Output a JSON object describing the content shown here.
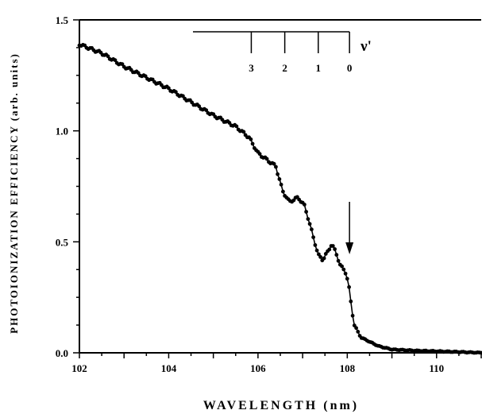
{
  "chart_data": {
    "type": "scatter",
    "title": "",
    "xlabel": "WAVELENGTH (nm)",
    "ylabel": "PHOTOIONIZATION EFFICIENCY (arb. units)",
    "xlim": [
      102,
      111
    ],
    "ylim": [
      0,
      1.5
    ],
    "x_ticks": [
      102,
      104,
      106,
      108,
      110
    ],
    "x_tick_labels": [
      "102",
      "104",
      "106",
      "108",
      "110"
    ],
    "y_ticks": [
      0,
      0.5,
      1.0,
      1.5
    ],
    "y_tick_labels": [
      "0.0",
      "0.5",
      "1.0",
      "1.5"
    ],
    "grid": false,
    "legend": "none",
    "marker": "filled-circle-with-line",
    "series_color": "#000000",
    "curve": [
      [
        102.0,
        1.39
      ],
      [
        102.5,
        1.35
      ],
      [
        103.0,
        1.29
      ],
      [
        103.5,
        1.24
      ],
      [
        104.0,
        1.19
      ],
      [
        104.5,
        1.13
      ],
      [
        105.0,
        1.07
      ],
      [
        105.5,
        1.02
      ],
      [
        105.8,
        0.97
      ],
      [
        106.0,
        0.9
      ],
      [
        106.2,
        0.87
      ],
      [
        106.4,
        0.84
      ],
      [
        106.55,
        0.73
      ],
      [
        106.7,
        0.68
      ],
      [
        106.9,
        0.7
      ],
      [
        107.05,
        0.66
      ],
      [
        107.2,
        0.55
      ],
      [
        107.35,
        0.44
      ],
      [
        107.45,
        0.42
      ],
      [
        107.55,
        0.45
      ],
      [
        107.65,
        0.49
      ],
      [
        107.75,
        0.45
      ],
      [
        107.85,
        0.39
      ],
      [
        107.95,
        0.37
      ],
      [
        108.02,
        0.32
      ],
      [
        108.08,
        0.23
      ],
      [
        108.15,
        0.13
      ],
      [
        108.3,
        0.07
      ],
      [
        108.5,
        0.05
      ],
      [
        108.7,
        0.03
      ],
      [
        109.0,
        0.015
      ],
      [
        109.5,
        0.01
      ],
      [
        110.0,
        0.007
      ],
      [
        110.5,
        0.004
      ],
      [
        111.0,
        0.0
      ]
    ],
    "vibrational_scale": {
      "label": "ν'",
      "levels": [
        {
          "label": "3",
          "x": 105.85
        },
        {
          "label": "2",
          "x": 106.6
        },
        {
          "label": "1",
          "x": 107.35
        },
        {
          "label": "0",
          "x": 108.05
        }
      ]
    },
    "arrow": {
      "x": 108.05
    }
  }
}
